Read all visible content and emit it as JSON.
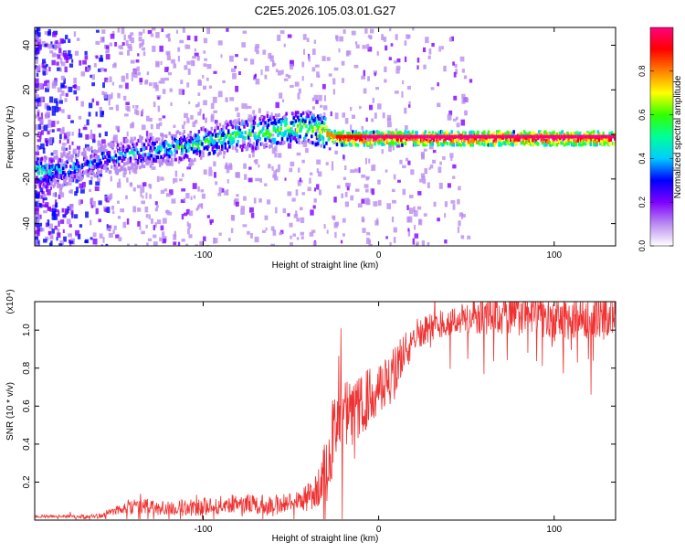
{
  "title": "C2E5.2026.105.03.01.G27",
  "chart_data": [
    {
      "type": "heatmap",
      "title": "C2E5.2026.105.03.01.G27",
      "xlabel": "Height of straight line (km)",
      "ylabel": "Frequency (Hz)",
      "xlim": [
        -196,
        135
      ],
      "ylim": [
        -50,
        48
      ],
      "x_ticks": [
        -100,
        0,
        100
      ],
      "x_tick_labels": [
        "-100",
        "0",
        "100"
      ],
      "y_ticks": [
        -40,
        -20,
        0,
        20,
        40
      ],
      "y_tick_labels": [
        "-40",
        "-20",
        "0",
        "20",
        "40"
      ],
      "colorbar": {
        "label": "Normalized spectral amplitude",
        "range": [
          0,
          1
        ],
        "ticks": [
          0.0,
          0.2,
          0.4,
          0.6,
          0.8
        ],
        "tick_labels": [
          "0.0",
          "0.2",
          "0.4",
          "0.6",
          "0.8"
        ],
        "stops": [
          "#ffffff",
          "#b98cf0",
          "#8000ff",
          "#0000ff",
          "#00ccff",
          "#00ff99",
          "#33ff00",
          "#ffff00",
          "#ff8000",
          "#ff0000",
          "#ff0080"
        ]
      },
      "ridge": {
        "x": [
          -196,
          -185,
          -175,
          -165,
          -155,
          -145,
          -135,
          -125,
          -115,
          -105,
          -95,
          -85,
          -75,
          -65,
          -55,
          -45,
          -40,
          -35,
          -30,
          -25,
          -20,
          -10,
          0,
          20,
          60,
          100,
          135
        ],
        "freq": [
          -16,
          -16,
          -14,
          -12,
          -10,
          -8,
          -7,
          -6,
          -5,
          -4,
          -2,
          0,
          1,
          2,
          3,
          4,
          4,
          3,
          1,
          -1,
          -1,
          -1,
          -1,
          -1,
          -1,
          -1,
          -1
        ],
        "amplitude": [
          0.55,
          0.45,
          0.35,
          0.3,
          0.4,
          0.4,
          0.42,
          0.45,
          0.48,
          0.5,
          0.52,
          0.55,
          0.55,
          0.58,
          0.6,
          0.6,
          0.62,
          0.65,
          0.75,
          0.85,
          0.92,
          0.95,
          0.95,
          0.95,
          0.95,
          0.95,
          0.95
        ]
      }
    },
    {
      "type": "line",
      "xlabel": "Height of straight line (km)",
      "ylabel": "SNR (10 * v/v)",
      "yscale_label": "(x10⁴)",
      "xlim": [
        -196,
        135
      ],
      "ylim": [
        0,
        1.15
      ],
      "x_ticks": [
        -100,
        0,
        100
      ],
      "x_tick_labels": [
        "-100",
        "0",
        "100"
      ],
      "y_ticks": [
        0.2,
        0.4,
        0.6,
        0.8,
        1.0
      ],
      "y_tick_labels": [
        "0.2",
        "0.4",
        "0.6",
        "0.8",
        "1.0"
      ],
      "color": "#f03232",
      "series": [
        {
          "name": "SNR",
          "x": [
            -196,
            -180,
            -160,
            -150,
            -140,
            -130,
            -120,
            -100,
            -80,
            -60,
            -45,
            -35,
            -30,
            -25,
            -20,
            -15,
            -10,
            -5,
            0,
            10,
            15,
            20,
            30,
            40,
            60,
            80,
            90,
            100,
            120,
            135
          ],
          "y": [
            0.02,
            0.02,
            0.02,
            0.05,
            0.08,
            0.07,
            0.06,
            0.07,
            0.09,
            0.08,
            0.1,
            0.15,
            0.3,
            0.45,
            0.55,
            0.55,
            0.6,
            0.65,
            0.68,
            0.8,
            0.9,
            0.98,
            1.02,
            1.05,
            1.07,
            1.08,
            1.1,
            1.05,
            1.07,
            1.08
          ],
          "noise": [
            0.01,
            0.01,
            0.015,
            0.03,
            0.05,
            0.05,
            0.05,
            0.06,
            0.06,
            0.07,
            0.07,
            0.12,
            0.2,
            0.25,
            0.25,
            0.22,
            0.2,
            0.2,
            0.18,
            0.15,
            0.12,
            0.1,
            0.1,
            0.1,
            0.12,
            0.14,
            0.14,
            0.14,
            0.14,
            0.14
          ]
        }
      ]
    }
  ]
}
